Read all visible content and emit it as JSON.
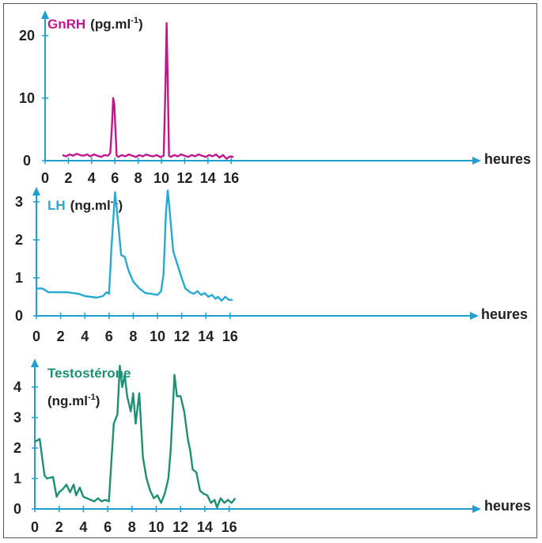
{
  "colors": {
    "axis": "#1f9fcf",
    "gnrh": "#c0188c",
    "lh": "#27a9d2",
    "testo": "#1e8f75",
    "text": "#222222"
  },
  "chart_data": [
    {
      "type": "line",
      "title": "GnRH",
      "unit_prefix": "(pg.ml",
      "unit_exp": "-1",
      "unit_suffix": ")",
      "xlabel": "heures",
      "xlim": [
        0,
        17.5
      ],
      "ylim": [
        0,
        22
      ],
      "xticks": [
        "0",
        "2",
        "4",
        "6",
        "8",
        "10",
        "12",
        "14",
        "16"
      ],
      "yticks": [
        "0",
        "10",
        "20"
      ],
      "series": [
        {
          "x": [
            1.5,
            1.8,
            2.1,
            2.4,
            2.7,
            3.0,
            3.3,
            3.6,
            3.9,
            4.2,
            4.5,
            4.8,
            5.1,
            5.4,
            5.6,
            5.75,
            5.85,
            5.95,
            6.05,
            6.15,
            6.3,
            6.6,
            6.9,
            7.2,
            7.5,
            7.8,
            8.1,
            8.4,
            8.7,
            9.0,
            9.3,
            9.6,
            9.9,
            10.2,
            10.35,
            10.45,
            10.55,
            10.65,
            10.8,
            11.1,
            11.4,
            11.7,
            12.0,
            12.3,
            12.6,
            12.9,
            13.2,
            13.5,
            13.8,
            14.1,
            14.4,
            14.7,
            15.0,
            15.3,
            15.6,
            15.9,
            16.2
          ],
          "y": [
            0.9,
            0.7,
            1.0,
            0.8,
            1.1,
            0.9,
            0.8,
            1.0,
            0.7,
            1.0,
            0.8,
            0.6,
            0.9,
            0.8,
            1.2,
            5.5,
            10,
            9,
            5,
            0.8,
            0.6,
            0.9,
            0.7,
            1.0,
            0.8,
            0.6,
            0.9,
            0.7,
            1.0,
            0.8,
            0.7,
            0.9,
            0.6,
            0.8,
            12,
            22,
            12,
            0.8,
            0.6,
            0.9,
            0.7,
            1.0,
            0.8,
            0.6,
            0.9,
            0.7,
            1.0,
            0.8,
            0.6,
            0.9,
            0.7,
            1.0,
            0.5,
            0.9,
            0.3,
            0.7,
            0.6
          ]
        }
      ]
    },
    {
      "type": "line",
      "title": "LH",
      "unit_prefix": "(ng.ml",
      "unit_exp": "-1",
      "unit_suffix": ")",
      "xlabel": "heures",
      "xlim": [
        0,
        17.5
      ],
      "ylim": [
        0,
        3.4
      ],
      "xticks": [
        "0",
        "2",
        "4",
        "6",
        "8",
        "10",
        "12",
        "14",
        "16"
      ],
      "yticks": [
        "0",
        "1",
        "2",
        "3"
      ],
      "series": [
        {
          "x": [
            0,
            0.5,
            1,
            1.5,
            2,
            2.5,
            3,
            3.5,
            4,
            4.5,
            5,
            5.5,
            5.8,
            6.0,
            6.2,
            6.5,
            6.8,
            7.0,
            7.3,
            7.6,
            8.0,
            8.5,
            9.0,
            9.5,
            10.0,
            10.3,
            10.5,
            10.7,
            10.85,
            11.0,
            11.3,
            11.7,
            12.0,
            12.3,
            12.7,
            13.0,
            13.3,
            13.6,
            13.9,
            14.2,
            14.5,
            14.8,
            15.0,
            15.3,
            15.6,
            15.9,
            16.2
          ],
          "y": [
            0.72,
            0.72,
            0.62,
            0.62,
            0.62,
            0.62,
            0.6,
            0.58,
            0.52,
            0.5,
            0.48,
            0.52,
            0.62,
            0.58,
            1.8,
            3.25,
            2.3,
            1.6,
            1.55,
            1.2,
            0.9,
            0.72,
            0.6,
            0.58,
            0.55,
            0.65,
            1.1,
            2.7,
            3.3,
            2.8,
            1.7,
            1.3,
            1.0,
            0.72,
            0.62,
            0.58,
            0.65,
            0.55,
            0.6,
            0.5,
            0.55,
            0.45,
            0.5,
            0.4,
            0.5,
            0.42,
            0.42
          ]
        }
      ]
    },
    {
      "type": "line",
      "title": "Testostérone",
      "unit_prefix": "(ng.ml",
      "unit_exp": "-1",
      "unit_suffix": ")",
      "xlabel": "heures",
      "xlim": [
        0,
        17.8
      ],
      "ylim": [
        0,
        4.8
      ],
      "xticks": [
        "0",
        "2",
        "4",
        "6",
        "8",
        "10",
        "12",
        "14",
        "16"
      ],
      "yticks": [
        "0",
        "1",
        "2",
        "3",
        "4"
      ],
      "series": [
        {
          "x": [
            0,
            0.4,
            0.6,
            0.8,
            1.0,
            1.5,
            1.8,
            2.0,
            2.3,
            2.6,
            2.9,
            3.2,
            3.4,
            3.7,
            4.0,
            4.3,
            4.6,
            4.9,
            5.2,
            5.5,
            5.8,
            6.1,
            6.5,
            6.8,
            7.0,
            7.2,
            7.4,
            7.6,
            7.9,
            8.1,
            8.3,
            8.6,
            8.9,
            9.2,
            9.5,
            9.8,
            10.1,
            10.4,
            10.7,
            11.0,
            11.2,
            11.5,
            11.7,
            12.0,
            12.3,
            12.6,
            12.8,
            13.0,
            13.3,
            13.6,
            13.9,
            14.2,
            14.5,
            14.8,
            15.0,
            15.3,
            15.6,
            15.9,
            16.2,
            16.5
          ],
          "y": [
            2.2,
            2.3,
            1.7,
            1.1,
            1.0,
            1.05,
            0.4,
            0.55,
            0.65,
            0.8,
            0.55,
            0.8,
            0.45,
            0.7,
            0.4,
            0.35,
            0.3,
            0.25,
            0.35,
            0.25,
            0.3,
            0.25,
            2.8,
            3.1,
            4.7,
            4.0,
            4.4,
            3.7,
            3.2,
            3.8,
            2.8,
            3.8,
            1.7,
            1.0,
            0.6,
            0.35,
            0.45,
            0.2,
            0.5,
            1.0,
            2.0,
            4.4,
            3.7,
            3.7,
            3.2,
            2.3,
            1.9,
            1.3,
            1.2,
            0.6,
            0.5,
            0.45,
            0.2,
            0.3,
            0.05,
            0.35,
            0.2,
            0.3,
            0.2,
            0.35
          ]
        }
      ]
    }
  ]
}
